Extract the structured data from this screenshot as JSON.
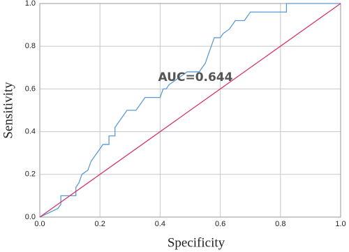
{
  "chart_data": {
    "type": "line",
    "xlabel": "Specificity",
    "ylabel": "Sensitivity",
    "annotation": "AUC=0.644",
    "xlim": [
      0,
      1
    ],
    "ylim": [
      0,
      1
    ],
    "xticks": [
      {
        "value": 0,
        "label": "0.0"
      },
      0.2,
      0.4,
      0.6,
      0.8,
      {
        "value": 1,
        "label": "1.0"
      }
    ],
    "yticks": [
      {
        "value": 0,
        "label": "0.0"
      },
      0.2,
      0.4,
      0.6,
      0.8,
      {
        "value": 1,
        "label": "1.0"
      }
    ],
    "grid": true,
    "series": [
      {
        "color": "#5b9bd5",
        "x": [
          0,
          0.06,
          0.07,
          0.07,
          0.12,
          0.12,
          0.13,
          0.14,
          0.16,
          0.17,
          0.18,
          0.19,
          0.2,
          0.21,
          0.23,
          0.23,
          0.25,
          0.25,
          0.26,
          0.27,
          0.28,
          0.29,
          0.32,
          0.33,
          0.34,
          0.35,
          0.4,
          0.41,
          0.42,
          0.43,
          0.45,
          0.47,
          0.49,
          0.53,
          0.54,
          0.55,
          0.56,
          0.57,
          0.58,
          0.6,
          0.61,
          0.63,
          0.64,
          0.65,
          0.68,
          0.69,
          0.7,
          0.82,
          0.82,
          1
        ],
        "values": [
          0,
          0.04,
          0.06,
          0.1,
          0.1,
          0.14,
          0.16,
          0.2,
          0.22,
          0.26,
          0.28,
          0.3,
          0.32,
          0.34,
          0.34,
          0.38,
          0.38,
          0.42,
          0.44,
          0.46,
          0.48,
          0.5,
          0.5,
          0.52,
          0.54,
          0.56,
          0.56,
          0.6,
          0.6,
          0.62,
          0.64,
          0.66,
          0.68,
          0.68,
          0.7,
          0.72,
          0.76,
          0.8,
          0.84,
          0.84,
          0.86,
          0.88,
          0.9,
          0.92,
          0.92,
          0.94,
          0.96,
          0.96,
          1,
          1
        ]
      },
      {
        "color": "#d6336c",
        "x": [
          0,
          1
        ],
        "values": [
          0,
          1
        ]
      }
    ]
  }
}
